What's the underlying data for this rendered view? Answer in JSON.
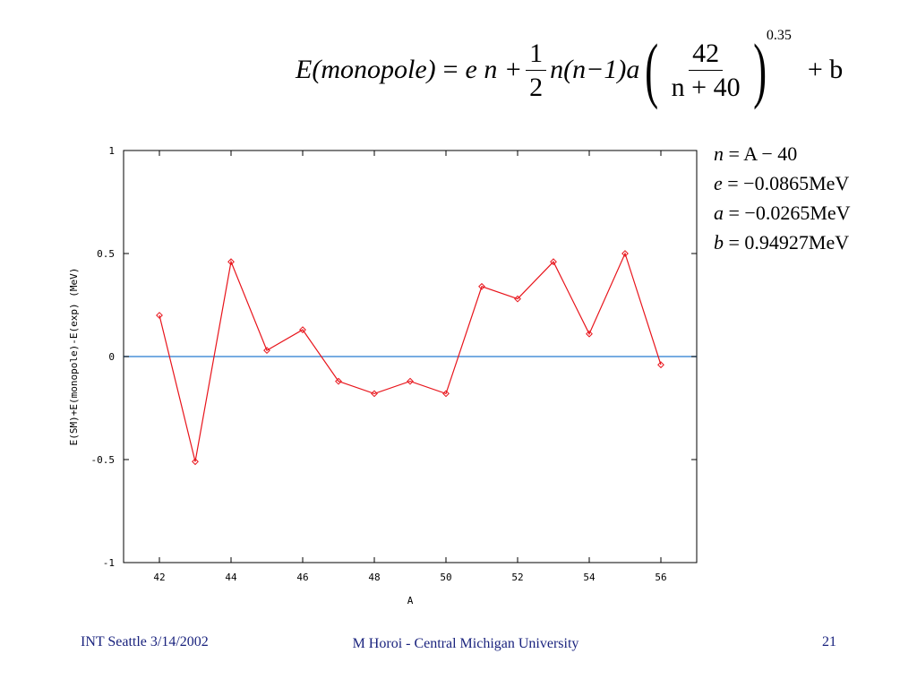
{
  "formula": {
    "lhs": "E(monopole)",
    "eq": "=",
    "term1": "e n +",
    "frac_num": "1",
    "frac_den": "2",
    "term2": "n(n−1)a",
    "frac2_num": "42",
    "frac2_den": "n + 40",
    "exponent": "0.35",
    "tail": "+ b"
  },
  "params": [
    {
      "lhs": "n",
      "rhs": " = A − 40"
    },
    {
      "lhs": "e",
      "rhs": " = −0.0865MeV"
    },
    {
      "lhs": "a",
      "rhs": " = −0.0265MeV"
    },
    {
      "lhs": "b",
      "rhs": " = 0.94927MeV"
    }
  ],
  "chart_data": {
    "type": "line",
    "xlabel": "A",
    "ylabel": "E(SM)+E(monopole)-E(exp) (MeV)",
    "xlim": [
      41,
      57
    ],
    "ylim": [
      -1,
      1
    ],
    "xticks": [
      42,
      44,
      46,
      48,
      50,
      52,
      54,
      56
    ],
    "yticks": [
      -1,
      -0.5,
      0,
      0.5,
      1
    ],
    "ytick_labels": [
      "-1",
      "-0.5",
      "0",
      "0.5",
      "1"
    ],
    "grid": false,
    "zero_line": {
      "y": 0,
      "color": "#4a90d9"
    },
    "series": [
      {
        "color": "#e8141b",
        "marker": "diamond",
        "x": [
          42,
          43,
          44,
          45,
          46,
          47,
          48,
          49,
          50,
          51,
          52,
          53,
          54,
          55,
          56
        ],
        "y": [
          0.2,
          -0.51,
          0.46,
          0.03,
          0.13,
          -0.12,
          -0.18,
          -0.12,
          -0.18,
          0.34,
          0.28,
          0.46,
          0.11,
          0.5,
          -0.04
        ]
      }
    ]
  },
  "footer": {
    "left": "INT Seattle 3/14/2002",
    "center": "M Horoi - Central Michigan University",
    "right": "21"
  }
}
